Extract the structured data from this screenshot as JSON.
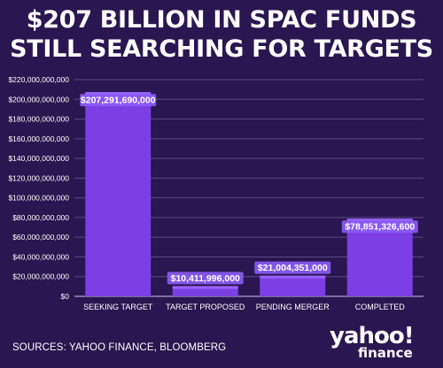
{
  "title_line1": "$207 BILLION IN SPAC FUNDS",
  "title_line2": "STILL SEARCHING FOR TARGETS",
  "source": "SOURCES: YAHOO FINANCE, BLOOMBERG",
  "logo": {
    "word": "yahoo!",
    "sub": "finance"
  },
  "colors": {
    "background": "#2a1650",
    "bar": "#7b3fe4",
    "bar_top": "#9a63ff",
    "grid": "#5a4a80",
    "label_bg": "#8b5cf6"
  },
  "chart_data": {
    "type": "bar",
    "categories": [
      "SEEKING TARGET",
      "TARGET PROPOSED",
      "PENDING MERGER",
      "COMPLETED"
    ],
    "values": [
      207291690000,
      10411996000,
      21004351000,
      78851326600
    ],
    "data_labels": [
      "$207,291,690,000",
      "$10,411,996,000",
      "$21,004,351,000",
      "$78,851,326,600"
    ],
    "ylim": [
      0,
      220000000000
    ],
    "yticks": [
      0,
      20000000000,
      40000000000,
      60000000000,
      80000000000,
      100000000000,
      120000000000,
      140000000000,
      160000000000,
      180000000000,
      200000000000,
      220000000000
    ],
    "ytick_labels": [
      "$0",
      "$20,000,000,000",
      "$40,000,000,000",
      "$60,000,000,000",
      "$80,000,000,000",
      "$100,000,000,000",
      "$120,000,000,000",
      "$140,000,000,000",
      "$160,000,000,000",
      "$180,000,000,000",
      "$200,000,000,000",
      "$220,000,000,000"
    ],
    "title": "$207 BILLION IN SPAC FUNDS STILL SEARCHING FOR TARGETS",
    "xlabel": "",
    "ylabel": "",
    "grid": true
  }
}
